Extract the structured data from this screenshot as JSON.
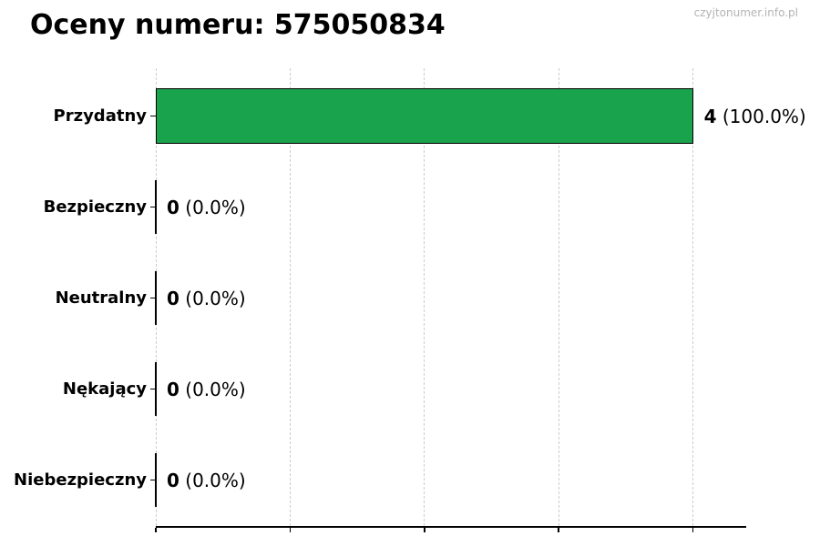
{
  "header": {
    "title": "Oceny numeru: 575050834",
    "watermark": "czyjtonumer.info.pl"
  },
  "chart_data": {
    "type": "bar",
    "orientation": "horizontal",
    "title": "Oceny numeru: 575050834",
    "categories": [
      "Przydatny",
      "Bezpieczny",
      "Neutralny",
      "Nękający",
      "Niebezpieczny"
    ],
    "values": [
      4,
      0,
      0,
      0,
      0
    ],
    "value_labels": [
      {
        "count": "4",
        "percent": "(100.0%)"
      },
      {
        "count": "0",
        "percent": "(0.0%)"
      },
      {
        "count": "0",
        "percent": "(0.0%)"
      },
      {
        "count": "0",
        "percent": "(0.0%)"
      },
      {
        "count": "0",
        "percent": "(0.0%)"
      }
    ],
    "xlabel": "",
    "ylabel": "",
    "xlim": [
      0,
      4.4
    ],
    "xticks": [
      0,
      1,
      2,
      3,
      4
    ],
    "xtick_labels_visible": false,
    "grid": "vertical-dashed",
    "legend": "none",
    "colors": {
      "bar_fill": "#1aa34d",
      "bar_edge": "#000000",
      "grid_line": "#cccccc",
      "axis_line": "#000000",
      "text": "#000000",
      "watermark": "#b3b3b3",
      "background": "#ffffff"
    }
  }
}
